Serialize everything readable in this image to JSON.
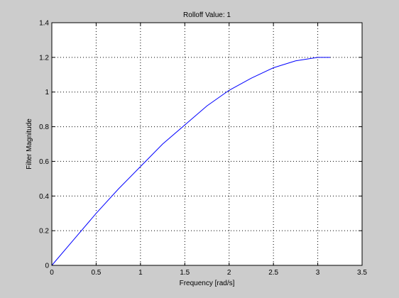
{
  "chart_data": {
    "type": "line",
    "title": "Rolloff Value: 1",
    "xlabel": "Frequency [rad/s]",
    "ylabel": "Filter Magnitude",
    "xlim": [
      0,
      3.5
    ],
    "ylim": [
      0,
      1.4
    ],
    "xticks": [
      "0",
      "0.5",
      "1",
      "1.5",
      "2",
      "2.5",
      "3",
      "3.5"
    ],
    "yticks": [
      "0",
      "0.2",
      "0.4",
      "0.6",
      "0.8",
      "1",
      "1.2",
      "1.4"
    ],
    "grid": true,
    "grid_style": "dotted",
    "series": [
      {
        "color": "#0000ff",
        "x": [
          0,
          0.25,
          0.5,
          0.75,
          1.0,
          1.25,
          1.5,
          1.75,
          2.0,
          2.25,
          2.5,
          2.75,
          3.0,
          3.14
        ],
        "y": [
          0,
          0.15,
          0.3,
          0.44,
          0.57,
          0.7,
          0.81,
          0.92,
          1.01,
          1.08,
          1.14,
          1.18,
          1.2,
          1.2
        ]
      }
    ]
  }
}
